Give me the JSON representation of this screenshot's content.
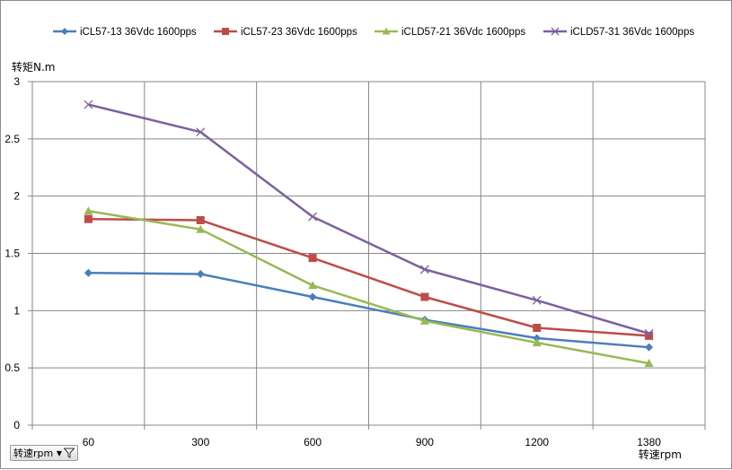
{
  "chart_data": {
    "type": "line",
    "categories": [
      "60",
      "300",
      "600",
      "900",
      "1200",
      "1380"
    ],
    "series": [
      {
        "name": "iCL57-13 36Vdc 1600pps",
        "values": [
          1.33,
          1.32,
          1.12,
          0.92,
          0.76,
          0.68
        ],
        "color": "#4a7ebb",
        "marker": "diamond"
      },
      {
        "name": "iCL57-23 36Vdc 1600pps",
        "values": [
          1.8,
          1.79,
          1.46,
          1.12,
          0.85,
          0.78
        ],
        "color": "#be4b48",
        "marker": "square"
      },
      {
        "name": "iCLD57-21 36Vdc 1600pps",
        "values": [
          1.87,
          1.71,
          1.22,
          0.91,
          0.72,
          0.54
        ],
        "color": "#98b954",
        "marker": "triangle"
      },
      {
        "name": "iCLD57-31 36Vdc 1600pps",
        "values": [
          2.8,
          2.56,
          1.82,
          1.36,
          1.09,
          0.8
        ],
        "color": "#7d5fa0",
        "marker": "x"
      }
    ],
    "xlabel": "转速rpm",
    "ylabel": "转矩N.m",
    "ylim": [
      0,
      3
    ],
    "yticks": [
      "0",
      "0.5",
      "1",
      "1.5",
      "2",
      "2.5",
      "3"
    ],
    "grid": true,
    "legend_position": "top"
  },
  "filter_button": {
    "label": "转速rpm",
    "dropdown_glyph": "▼",
    "icon": "filter-icon"
  }
}
